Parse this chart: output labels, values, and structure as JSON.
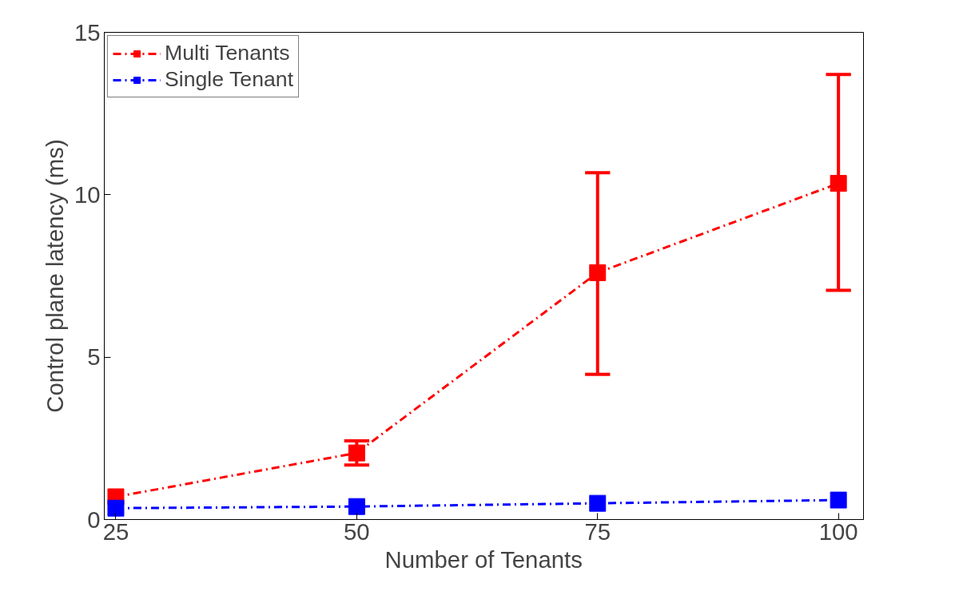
{
  "chart_data": {
    "type": "line",
    "xlabel": "Number of Tenants",
    "ylabel": "Control plane latency (ms)",
    "x": [
      25,
      50,
      75,
      100
    ],
    "series": [
      {
        "name": "Multi Tenants",
        "color": "#ff0000",
        "values": [
          0.7,
          2.05,
          7.6,
          10.35
        ],
        "errors": [
          null,
          [
            1.68,
            2.42
          ],
          [
            4.47,
            10.68
          ],
          [
            7.06,
            13.7
          ]
        ]
      },
      {
        "name": "Single Tenant",
        "color": "#0000ff",
        "values": [
          0.35,
          0.4,
          0.5,
          0.6
        ]
      }
    ],
    "xlim": [
      23.8,
      102.6
    ],
    "ylim": [
      0,
      15
    ],
    "xticks": [
      25,
      50,
      75,
      100
    ],
    "yticks": [
      0,
      5,
      10,
      15
    ],
    "grid": false,
    "legend": "top left",
    "marker": "square",
    "line_style": "dashed"
  }
}
